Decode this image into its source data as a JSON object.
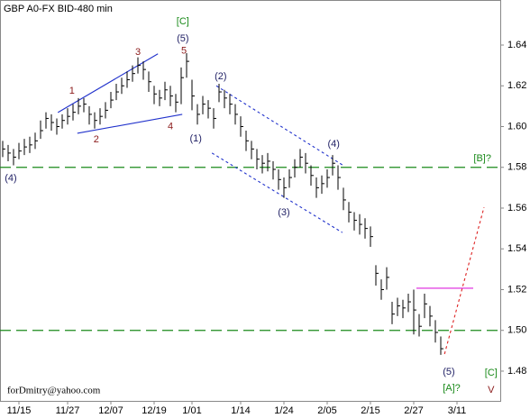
{
  "chart_data": {
    "type": "hlc",
    "title": "GBP A0-FX BID-480 min",
    "watermark": "forDmitry@yahoo.com",
    "color": "#000000",
    "high": [
      1.593,
      1.591,
      1.589,
      1.592,
      1.594,
      1.595,
      1.597,
      1.603,
      1.607,
      1.606,
      1.604,
      1.606,
      1.609,
      1.611,
      1.614,
      1.614,
      1.61,
      1.607,
      1.609,
      1.612,
      1.617,
      1.621,
      1.624,
      1.627,
      1.63,
      1.634,
      1.632,
      1.627,
      1.62,
      1.618,
      1.622,
      1.62,
      1.616,
      1.629,
      1.636,
      1.623,
      1.611,
      1.615,
      1.613,
      1.609,
      1.621,
      1.618,
      1.616,
      1.611,
      1.605,
      1.598,
      1.593,
      1.589,
      1.586,
      1.587,
      1.583,
      1.579,
      1.575,
      1.579,
      1.584,
      1.589,
      1.587,
      1.581,
      1.575,
      1.576,
      1.579,
      1.586,
      1.581,
      1.57,
      1.563,
      1.558,
      1.557,
      1.555,
      1.551,
      1.532,
      1.525,
      1.531,
      1.514,
      1.516,
      1.515,
      1.518,
      1.52,
      1.508,
      1.518,
      1.512,
      1.505,
      1.497
    ],
    "low": [
      1.585,
      1.583,
      1.581,
      1.584,
      1.586,
      1.587,
      1.589,
      1.594,
      1.599,
      1.598,
      1.596,
      1.599,
      1.601,
      1.603,
      1.606,
      1.607,
      1.601,
      1.599,
      1.601,
      1.604,
      1.609,
      1.613,
      1.616,
      1.619,
      1.622,
      1.626,
      1.623,
      1.617,
      1.611,
      1.61,
      1.613,
      1.61,
      1.607,
      1.611,
      1.624,
      1.608,
      1.601,
      1.606,
      1.604,
      1.599,
      1.612,
      1.609,
      1.606,
      1.601,
      1.595,
      1.588,
      1.584,
      1.579,
      1.577,
      1.578,
      1.574,
      1.569,
      1.565,
      1.57,
      1.575,
      1.58,
      1.577,
      1.571,
      1.565,
      1.567,
      1.57,
      1.576,
      1.569,
      1.559,
      1.553,
      1.549,
      1.547,
      1.545,
      1.541,
      1.522,
      1.515,
      1.52,
      1.503,
      1.507,
      1.506,
      1.509,
      1.498,
      1.497,
      1.506,
      1.502,
      1.494,
      1.488
    ],
    "close": [
      1.589,
      1.587,
      1.585,
      1.588,
      1.59,
      1.591,
      1.593,
      1.598,
      1.604,
      1.602,
      1.6,
      1.603,
      1.605,
      1.607,
      1.61,
      1.611,
      1.606,
      1.603,
      1.605,
      1.608,
      1.613,
      1.617,
      1.62,
      1.623,
      1.626,
      1.63,
      1.628,
      1.622,
      1.616,
      1.614,
      1.618,
      1.615,
      1.612,
      1.624,
      1.632,
      1.615,
      1.606,
      1.611,
      1.609,
      1.604,
      1.617,
      1.614,
      1.611,
      1.606,
      1.6,
      1.593,
      1.589,
      1.584,
      1.582,
      1.583,
      1.579,
      1.574,
      1.57,
      1.575,
      1.58,
      1.585,
      1.582,
      1.576,
      1.57,
      1.572,
      1.575,
      1.582,
      1.575,
      1.564,
      1.558,
      1.554,
      1.552,
      1.55,
      1.546,
      1.528,
      1.52,
      1.526,
      1.508,
      1.512,
      1.511,
      1.514,
      1.51,
      1.502,
      1.513,
      1.507,
      1.499,
      1.491
    ],
    "xlim": [
      -0.5,
      92
    ],
    "xticks": [
      {
        "value": 3,
        "label": "11/15"
      },
      {
        "value": 12,
        "label": "11/27"
      },
      {
        "value": 20,
        "label": "12/07"
      },
      {
        "value": 28,
        "label": "12/19"
      },
      {
        "value": 35,
        "label": "1/01"
      },
      {
        "value": 44,
        "label": "1/14"
      },
      {
        "value": 52,
        "label": "1/24"
      },
      {
        "value": 60,
        "label": "2/05"
      },
      {
        "value": 68,
        "label": "2/15"
      },
      {
        "value": 76,
        "label": "2/27"
      },
      {
        "value": 84,
        "label": "3/11"
      }
    ],
    "ylim": [
      1.4654,
      1.6621
    ],
    "yticks": [
      1.48,
      {
        "value": 1.5,
        "label": "1.50"
      },
      1.52,
      1.54,
      1.56,
      1.58,
      {
        "value": 1.6,
        "label": "1.60"
      },
      1.62,
      1.64
    ],
    "hlines": [
      {
        "y": 1.58,
        "color": "#1a8a1a"
      },
      {
        "y": 1.5,
        "color": "#1a8a1a"
      }
    ],
    "lines": [
      {
        "x": [
          10.2,
          28.7
        ],
        "y": [
          1.6069,
          1.6357
        ],
        "color": "#2233cc",
        "style": "solid"
      },
      {
        "x": [
          13.8,
          33.2
        ],
        "y": [
          1.5967,
          1.606
        ],
        "color": "#2233cc",
        "style": "solid"
      },
      {
        "x": [
          39.5,
          62.8
        ],
        "y": [
          1.62,
          1.5812
        ],
        "color": "#2233cc",
        "style": "dotted"
      },
      {
        "x": [
          38.7,
          62.8
        ],
        "y": [
          1.587,
          1.548
        ],
        "color": "#2233cc",
        "style": "dotted"
      },
      {
        "x": [
          81.7,
          89
        ],
        "y": [
          1.4884,
          1.5604
        ],
        "color": "#dd2222",
        "style": "dotted"
      },
      {
        "x": [
          76.5,
          87
        ],
        "y": [
          1.5207,
          1.5207
        ],
        "color": "#dd22dd",
        "style": "solid"
      }
    ],
    "annotations": [
      {
        "text": "[C]",
        "x": 33.3,
        "y": 1.6515,
        "color": "#1a8a1a"
      },
      {
        "text": "(5)",
        "x": 33.3,
        "y": 1.643,
        "color": "#222266"
      },
      {
        "text": "5",
        "x": 33.5,
        "y": 1.637,
        "color": "#8b1a1a"
      },
      {
        "text": "1",
        "x": 12.8,
        "y": 1.6175,
        "color": "#8b1a1a"
      },
      {
        "text": "2",
        "x": 17.3,
        "y": 1.5936,
        "color": "#8b1a1a"
      },
      {
        "text": "3",
        "x": 25,
        "y": 1.6365,
        "color": "#8b1a1a"
      },
      {
        "text": "4",
        "x": 31,
        "y": 1.6,
        "color": "#8b1a1a"
      },
      {
        "text": "(4)",
        "x": 1.5,
        "y": 1.5746,
        "color": "#222266"
      },
      {
        "text": "(1)",
        "x": 35.7,
        "y": 1.594,
        "color": "#222266"
      },
      {
        "text": "(2)",
        "x": 40.3,
        "y": 1.6245,
        "color": "#222266"
      },
      {
        "text": "(3)",
        "x": 52,
        "y": 1.5578,
        "color": "#222266"
      },
      {
        "text": "(4)",
        "x": 61.2,
        "y": 1.5914,
        "color": "#222266"
      },
      {
        "text": "[B]?",
        "x": 88.7,
        "y": 1.5843,
        "color": "#1a8a1a"
      },
      {
        "text": "(5)",
        "x": 82.5,
        "y": 1.4796,
        "color": "#222266"
      },
      {
        "text": "[A]?",
        "x": 83,
        "y": 1.4716,
        "color": "#1a8a1a"
      },
      {
        "text": "[C]",
        "x": 90.3,
        "y": 1.479,
        "color": "#1a8a1a"
      },
      {
        "text": "V",
        "x": 90.3,
        "y": 1.4707,
        "color": "#8b1a1a"
      }
    ]
  }
}
